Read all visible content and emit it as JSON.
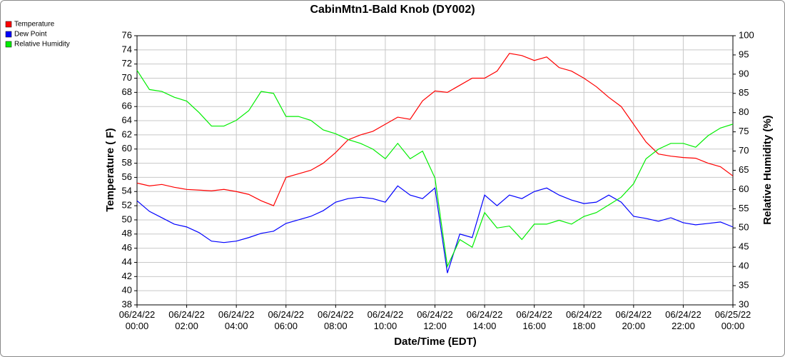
{
  "chart_data": {
    "type": "line",
    "title": "CabinMtn1-Bald Knob (DY002)",
    "xlabel": "Date/Time (EDT)",
    "ylabel": "Temperature ( F)",
    "y2label": "Relative Humidity (%)",
    "x": [
      "06/24/22 00:00",
      "06/24/22 00:30",
      "06/24/22 01:00",
      "06/24/22 01:30",
      "06/24/22 02:00",
      "06/24/22 02:30",
      "06/24/22 03:00",
      "06/24/22 03:30",
      "06/24/22 04:00",
      "06/24/22 04:30",
      "06/24/22 05:00",
      "06/24/22 05:30",
      "06/24/22 06:00",
      "06/24/22 06:30",
      "06/24/22 07:00",
      "06/24/22 07:30",
      "06/24/22 08:00",
      "06/24/22 08:30",
      "06/24/22 09:00",
      "06/24/22 09:30",
      "06/24/22 10:00",
      "06/24/22 10:30",
      "06/24/22 11:00",
      "06/24/22 11:30",
      "06/24/22 12:00",
      "06/24/22 12:30",
      "06/24/22 13:00",
      "06/24/22 13:30",
      "06/24/22 14:00",
      "06/24/22 14:30",
      "06/24/22 15:00",
      "06/24/22 15:30",
      "06/24/22 16:00",
      "06/24/22 16:30",
      "06/24/22 17:00",
      "06/24/22 17:30",
      "06/24/22 18:00",
      "06/24/22 18:30",
      "06/24/22 19:00",
      "06/24/22 19:30",
      "06/24/22 20:00",
      "06/24/22 20:30",
      "06/24/22 21:00",
      "06/24/22 21:30",
      "06/24/22 22:00",
      "06/24/22 22:30",
      "06/24/22 23:00",
      "06/24/22 23:30",
      "06/25/22 00:00"
    ],
    "series": [
      {
        "name": "Temperature",
        "color": "#ff0000",
        "values": [
          55.2,
          54.8,
          55.0,
          54.6,
          54.3,
          54.2,
          54.1,
          54.3,
          54.0,
          53.6,
          52.7,
          52.0,
          56.0,
          56.5,
          57.0,
          58.0,
          59.5,
          61.3,
          62.0,
          62.5,
          63.5,
          64.5,
          64.2,
          66.8,
          68.2,
          68.0,
          69.0,
          70.0,
          70.0,
          71.0,
          73.5,
          73.2,
          72.5,
          73.0,
          71.5,
          71.0,
          70.0,
          68.8,
          67.3,
          66.0,
          63.5,
          61.0,
          59.3,
          59.0,
          58.8,
          58.7,
          58.0,
          57.5,
          56.2
        ]
      },
      {
        "name": "Dew Point",
        "color": "#0000ff",
        "values": [
          52.7,
          51.2,
          50.3,
          49.4,
          49.0,
          48.2,
          47.0,
          46.8,
          47.0,
          47.5,
          48.1,
          48.4,
          49.5,
          50.0,
          50.5,
          51.3,
          52.5,
          53.0,
          53.2,
          53.0,
          52.5,
          54.8,
          53.5,
          53.0,
          54.5,
          42.5,
          48.0,
          47.5,
          53.5,
          52.0,
          53.5,
          53.0,
          54.0,
          54.5,
          53.5,
          52.8,
          52.3,
          52.5,
          53.5,
          52.5,
          50.5,
          50.2,
          49.8,
          50.3,
          49.6,
          49.3,
          49.5,
          49.7,
          49.0
        ]
      },
      {
        "name": "Relative Humidity",
        "color": "#00ee00",
        "axis": "y2",
        "values": [
          91,
          86,
          85.5,
          84,
          83,
          80,
          76.5,
          76.5,
          78,
          80.5,
          85.5,
          85,
          79,
          79,
          78,
          75.5,
          74.5,
          73,
          72,
          70.5,
          68,
          72,
          68,
          70,
          63,
          40,
          47,
          45,
          54,
          50,
          50.5,
          47,
          51,
          51,
          52,
          51,
          53,
          54,
          56,
          58,
          61.5,
          68,
          70.5,
          72,
          72,
          71,
          74,
          76,
          77
        ]
      }
    ],
    "xlim": [
      "06/24/22 00:00",
      "06/25/22 00:00"
    ],
    "xticks": [
      "06/24/22 00:00",
      "06/24/22 02:00",
      "06/24/22 04:00",
      "06/24/22 06:00",
      "06/24/22 08:00",
      "06/24/22 10:00",
      "06/24/22 12:00",
      "06/24/22 14:00",
      "06/24/22 16:00",
      "06/24/22 18:00",
      "06/24/22 20:00",
      "06/24/22 22:00",
      "06/25/22 00:00"
    ],
    "ylim": [
      38,
      76
    ],
    "yticks": [
      38,
      40,
      42,
      44,
      46,
      48,
      50,
      52,
      54,
      56,
      58,
      60,
      62,
      64,
      66,
      68,
      70,
      72,
      74,
      76
    ],
    "y2lim": [
      30,
      100
    ],
    "y2ticks": [
      30,
      35,
      40,
      45,
      50,
      55,
      60,
      65,
      70,
      75,
      80,
      85,
      90,
      95,
      100
    ],
    "grid": true,
    "legend": "top-left"
  }
}
